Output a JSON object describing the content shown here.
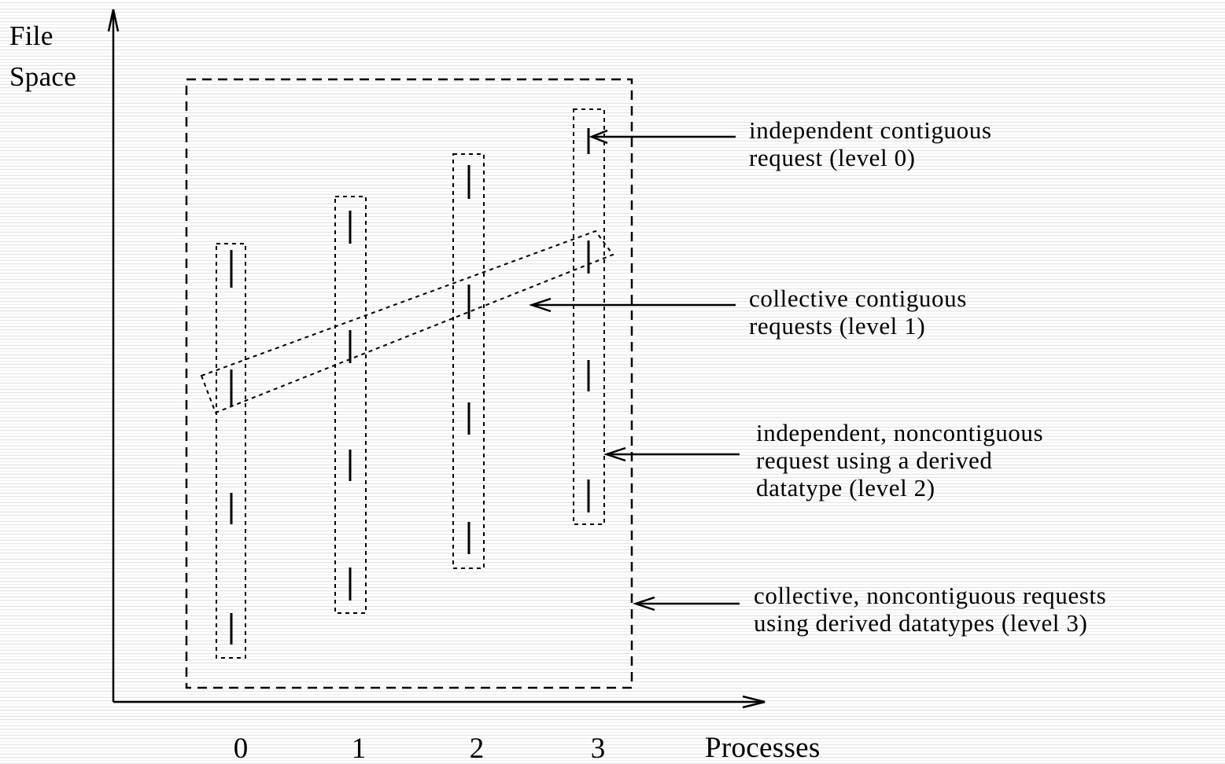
{
  "axes": {
    "y_label_line1": "File",
    "y_label_line2": "Space",
    "x_label": "Processes",
    "x_ticks": [
      "0",
      "1",
      "2",
      "3"
    ]
  },
  "annotations": {
    "level0": [
      "independent contiguous",
      "request (level 0)"
    ],
    "level1": [
      "collective contiguous",
      "requests (level 1)"
    ],
    "level2": [
      "independent, noncontiguous",
      "request using a derived",
      "datatype (level 2)"
    ],
    "level3": [
      "collective, noncontiguous requests",
      "using derived datatypes (level 3)"
    ]
  },
  "colors": {
    "ink": "#000000",
    "background": "#ffffff",
    "stripe": "#e4e4e4"
  }
}
